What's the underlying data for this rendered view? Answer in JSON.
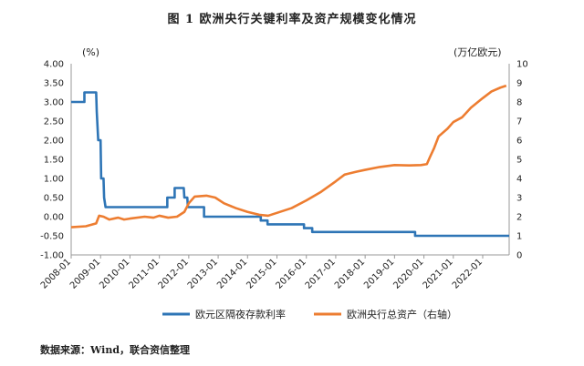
{
  "title": "图 1   欧洲央行关键利率及资产规模变化情况",
  "source": "数据来源：Wind，联合资信整理",
  "chart_data": {
    "type": "line",
    "left_unit": "(%)",
    "right_unit": "(万亿欧元)",
    "ylim_left": [
      -1.0,
      4.0
    ],
    "ylim_right": [
      0,
      10
    ],
    "left_ticks": [
      "4.00",
      "3.50",
      "3.00",
      "2.50",
      "2.00",
      "1.50",
      "1.00",
      "0.50",
      "0.00",
      "-0.50",
      "-1.00"
    ],
    "right_ticks": [
      "10",
      "9",
      "8",
      "7",
      "6",
      "5",
      "4",
      "3",
      "2",
      "1",
      "0"
    ],
    "x_ticks": [
      "2008-01",
      "2009-01",
      "2010-01",
      "2011-01",
      "2012-01",
      "2013-01",
      "2014-01",
      "2015-01",
      "2016-01",
      "2017-01",
      "2018-01",
      "2019-01",
      "2020-01",
      "2021-01",
      "2022-01"
    ],
    "xlim": [
      2008.0,
      2022.9
    ],
    "legend_position": "bottom",
    "series": [
      {
        "name": "欧元区隔夜存款利率",
        "axis": "left",
        "color": "#2e75b6",
        "points": [
          [
            2008.0,
            3.0
          ],
          [
            2008.45,
            3.0
          ],
          [
            2008.45,
            3.25
          ],
          [
            2008.85,
            3.25
          ],
          [
            2008.87,
            2.75
          ],
          [
            2008.92,
            2.0
          ],
          [
            2009.0,
            2.0
          ],
          [
            2009.02,
            1.0
          ],
          [
            2009.1,
            1.0
          ],
          [
            2009.12,
            0.5
          ],
          [
            2009.17,
            0.25
          ],
          [
            2011.27,
            0.25
          ],
          [
            2011.27,
            0.5
          ],
          [
            2011.52,
            0.5
          ],
          [
            2011.52,
            0.75
          ],
          [
            2011.83,
            0.75
          ],
          [
            2011.85,
            0.5
          ],
          [
            2011.95,
            0.5
          ],
          [
            2011.97,
            0.25
          ],
          [
            2012.52,
            0.25
          ],
          [
            2012.52,
            0.0
          ],
          [
            2014.45,
            0.0
          ],
          [
            2014.45,
            -0.1
          ],
          [
            2014.68,
            -0.1
          ],
          [
            2014.68,
            -0.2
          ],
          [
            2015.92,
            -0.2
          ],
          [
            2015.92,
            -0.3
          ],
          [
            2016.2,
            -0.3
          ],
          [
            2016.2,
            -0.4
          ],
          [
            2019.7,
            -0.4
          ],
          [
            2019.7,
            -0.5
          ],
          [
            2022.9,
            -0.5
          ]
        ]
      },
      {
        "name": "欧洲央行总资产（右轴）",
        "axis": "right",
        "color": "#ed7d31",
        "points": [
          [
            2008.0,
            1.45
          ],
          [
            2008.5,
            1.5
          ],
          [
            2008.85,
            1.65
          ],
          [
            2008.95,
            2.05
          ],
          [
            2009.1,
            2.0
          ],
          [
            2009.3,
            1.85
          ],
          [
            2009.6,
            1.95
          ],
          [
            2009.8,
            1.85
          ],
          [
            2010.0,
            1.9
          ],
          [
            2010.5,
            2.0
          ],
          [
            2010.8,
            1.95
          ],
          [
            2011.0,
            2.05
          ],
          [
            2011.3,
            1.95
          ],
          [
            2011.6,
            2.0
          ],
          [
            2011.85,
            2.25
          ],
          [
            2012.0,
            2.7
          ],
          [
            2012.2,
            3.05
          ],
          [
            2012.6,
            3.1
          ],
          [
            2012.9,
            3.0
          ],
          [
            2013.2,
            2.7
          ],
          [
            2013.6,
            2.45
          ],
          [
            2014.0,
            2.25
          ],
          [
            2014.4,
            2.1
          ],
          [
            2014.7,
            2.05
          ],
          [
            2015.0,
            2.2
          ],
          [
            2015.5,
            2.45
          ],
          [
            2016.0,
            2.85
          ],
          [
            2016.5,
            3.3
          ],
          [
            2017.0,
            3.85
          ],
          [
            2017.3,
            4.2
          ],
          [
            2017.7,
            4.35
          ],
          [
            2018.0,
            4.45
          ],
          [
            2018.5,
            4.6
          ],
          [
            2019.0,
            4.7
          ],
          [
            2019.5,
            4.68
          ],
          [
            2019.9,
            4.7
          ],
          [
            2020.1,
            4.75
          ],
          [
            2020.2,
            5.1
          ],
          [
            2020.35,
            5.6
          ],
          [
            2020.5,
            6.2
          ],
          [
            2020.8,
            6.6
          ],
          [
            2021.0,
            6.95
          ],
          [
            2021.3,
            7.2
          ],
          [
            2021.6,
            7.7
          ],
          [
            2022.0,
            8.2
          ],
          [
            2022.3,
            8.55
          ],
          [
            2022.6,
            8.75
          ],
          [
            2022.8,
            8.85
          ]
        ]
      }
    ]
  }
}
